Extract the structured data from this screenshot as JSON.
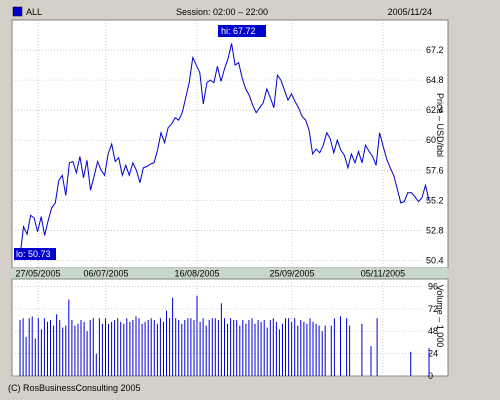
{
  "header": {
    "legend_label": "ALL",
    "legend_color": "#0000cc",
    "session": "Session: 02:00 – 22:00",
    "date": "2005/11/24"
  },
  "footer": {
    "copyright": "(C) RosBusinessConsulting 2005"
  },
  "chart_data": [
    {
      "type": "line",
      "title": "",
      "ylabel": "Price – USD/bbl",
      "ylim": [
        49.8,
        69.6
      ],
      "yticks": [
        "67.2",
        "64.8",
        "62.4",
        "60",
        "57.6",
        "55.2",
        "52.8",
        "50.4"
      ],
      "yticks_values": [
        67.2,
        64.8,
        62.4,
        60,
        57.6,
        55.2,
        52.8,
        50.4
      ],
      "xticks": [
        "27/05/2005",
        "06/07/2005",
        "16/08/2005",
        "25/09/2005",
        "05/11/2005"
      ],
      "grid": true,
      "color": "#0000cc",
      "annotations": {
        "high": "hi: 67.72",
        "low": "lo: 50.73"
      },
      "series": [
        {
          "values": [
            50.73,
            53.1,
            52.5,
            54.0,
            53.8,
            52.7,
            53.9,
            52.4,
            53.6,
            54.6,
            55.0,
            56.8,
            57.2,
            55.6,
            58.2,
            58.3,
            57.4,
            58.7,
            57.0,
            58.4,
            56.0,
            57.1,
            58.3,
            57.6,
            57.2,
            58.9,
            59.7,
            58.3,
            58.6,
            57.2,
            58.0,
            57.2,
            58.2,
            57.6,
            56.6,
            57.8,
            57.9,
            58.1,
            58.2,
            59.2,
            60.6,
            59.8,
            61.0,
            61.3,
            61.8,
            61.6,
            62.2,
            63.4,
            64.6,
            66.6,
            66.0,
            65.4,
            62.9,
            64.6,
            64.8,
            64.6,
            65.9,
            64.7,
            65.7,
            66.5,
            67.72,
            66.0,
            66.2,
            65.0,
            64.1,
            63.6,
            62.8,
            62.2,
            62.6,
            63.0,
            64.1,
            63.4,
            62.6,
            65.2,
            64.8,
            64.0,
            63.2,
            63.7,
            63.1,
            62.6,
            61.9,
            61.6,
            60.8,
            58.9,
            59.3,
            59.0,
            59.6,
            60.6,
            60.1,
            59.0,
            60.0,
            59.2,
            58.8,
            57.8,
            58.9,
            58.2,
            59.1,
            58.2,
            59.6,
            59.1,
            58.7,
            58.0,
            60.6,
            59.5,
            58.5,
            57.8,
            57.2,
            56.1,
            55.0,
            55.1,
            55.8,
            55.8,
            55.5,
            55.1,
            55.4,
            56.4,
            55.2
          ]
        }
      ]
    },
    {
      "type": "bar",
      "title": "",
      "ylabel": "Volume – 1 000",
      "ylim": [
        0,
        104
      ],
      "yticks": [
        "96",
        "72",
        "48",
        "24",
        "0"
      ],
      "yticks_values": [
        96,
        72,
        48,
        24,
        0
      ],
      "grid": true,
      "color": "#0000cc",
      "values": [
        60,
        62,
        42,
        62,
        64,
        40,
        62,
        50,
        62,
        58,
        60,
        54,
        66,
        60,
        52,
        54,
        82,
        60,
        54,
        56,
        60,
        58,
        48,
        60,
        62,
        24,
        62,
        56,
        62,
        56,
        58,
        60,
        62,
        58,
        56,
        62,
        58,
        60,
        64,
        62,
        56,
        58,
        60,
        62,
        60,
        56,
        62,
        58,
        70,
        62,
        84,
        62,
        60,
        56,
        60,
        62,
        62,
        60,
        86,
        58,
        62,
        54,
        60,
        62,
        62,
        60,
        78,
        62,
        56,
        62,
        60,
        60,
        54,
        60,
        56,
        60,
        62,
        56,
        60,
        58,
        60,
        52,
        60,
        62,
        58,
        50,
        56,
        62,
        62,
        58,
        62,
        54,
        60,
        58,
        56,
        62,
        58,
        56,
        54,
        48,
        54,
        0,
        54,
        62,
        0,
        64,
        0,
        62,
        54,
        0,
        0,
        0,
        56,
        0,
        0,
        32,
        0,
        62,
        0,
        0,
        0,
        0,
        0,
        0,
        0,
        0,
        0,
        0,
        26,
        0,
        0,
        0,
        0,
        0,
        30
      ]
    }
  ]
}
